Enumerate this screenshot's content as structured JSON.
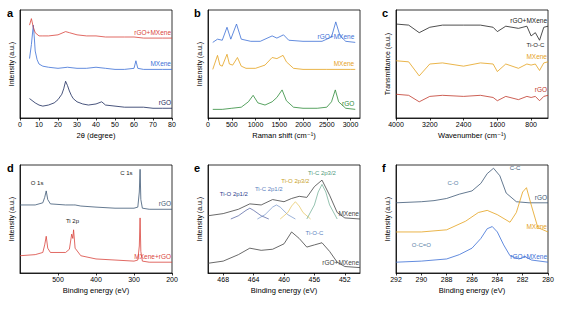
{
  "chart_data": [
    {
      "type": "line",
      "panel": "a",
      "xlabel": "2θ (degree)",
      "ylabel": "Intensity (a.u.)",
      "xlim": [
        0,
        80
      ],
      "xticks": [
        0,
        10,
        20,
        30,
        40,
        50,
        60,
        70,
        80
      ],
      "ylim": [
        0,
        10
      ],
      "tick_labels": "x",
      "grid": false,
      "series": [
        {
          "name": "rGO",
          "color": "#1b2a5c",
          "x": [
            5,
            8,
            10,
            12,
            15,
            18,
            20,
            22,
            23,
            24,
            25,
            26,
            27,
            28,
            30,
            33,
            36,
            40,
            43,
            45,
            50,
            55,
            60,
            65,
            70,
            75,
            80
          ],
          "values": [
            1.8,
            1.4,
            1.2,
            1.1,
            1.2,
            1.4,
            1.7,
            2.2,
            2.7,
            3.4,
            3.0,
            2.5,
            2.1,
            1.8,
            1.5,
            1.3,
            1.2,
            1.3,
            1.5,
            1.2,
            1.1,
            1.0,
            1.0,
            1.0,
            0.9,
            0.9,
            0.9
          ]
        },
        {
          "name": "MXene",
          "color": "#3b6fd6",
          "x": [
            5,
            6,
            7,
            7.5,
            8,
            9,
            10,
            12,
            15,
            20,
            25,
            30,
            35,
            40,
            45,
            50,
            55,
            60,
            61,
            62,
            65,
            70,
            75,
            80
          ],
          "values": [
            5.5,
            6.8,
            8.6,
            7.5,
            6.2,
            5.4,
            5.0,
            4.8,
            4.7,
            4.6,
            4.7,
            4.6,
            4.6,
            4.7,
            4.6,
            4.5,
            4.5,
            4.6,
            5.3,
            4.6,
            4.5,
            4.5,
            4.5,
            4.5
          ]
        },
        {
          "name": "rGO+MXene",
          "color": "#d9443c",
          "x": [
            5,
            6,
            7,
            8,
            10,
            12,
            15,
            20,
            24,
            26,
            30,
            35,
            40,
            45,
            50,
            55,
            60,
            65,
            70,
            75,
            80
          ],
          "values": [
            8.6,
            9.2,
            8.4,
            7.9,
            7.6,
            7.6,
            7.6,
            7.7,
            8.0,
            7.9,
            7.7,
            7.6,
            7.6,
            7.5,
            7.5,
            7.5,
            7.5,
            7.4,
            7.4,
            7.4,
            7.4
          ]
        }
      ],
      "annotations": []
    },
    {
      "type": "line",
      "panel": "b",
      "xlabel": "Raman shift (cm⁻¹)",
      "ylabel": "Intensity (a.u.)",
      "xlim": [
        0,
        3200
      ],
      "xticks": [
        0,
        500,
        1000,
        1500,
        2000,
        2500,
        3000
      ],
      "ylim": [
        0,
        10
      ],
      "tick_labels": "x",
      "grid": false,
      "series": [
        {
          "name": "rGO",
          "color": "#2e8b3a",
          "x": [
            100,
            300,
            500,
            700,
            850,
            950,
            1050,
            1200,
            1350,
            1450,
            1560,
            1650,
            1800,
            2000,
            2300,
            2500,
            2600,
            2680,
            2750,
            2900,
            3100
          ],
          "values": [
            0.8,
            0.8,
            0.9,
            1.0,
            1.5,
            2.1,
            1.4,
            1.2,
            1.5,
            1.9,
            2.6,
            1.6,
            1.0,
            0.9,
            0.9,
            1.0,
            1.5,
            2.6,
            1.5,
            0.9,
            0.8
          ]
        },
        {
          "name": "MXene",
          "color": "#e5a21d",
          "x": [
            100,
            200,
            250,
            300,
            400,
            450,
            520,
            620,
            700,
            800,
            1000,
            1200,
            1350,
            1450,
            1580,
            1650,
            1800,
            2000,
            2500,
            3000,
            3100
          ],
          "values": [
            4.5,
            5.8,
            4.9,
            4.8,
            5.9,
            5.0,
            4.9,
            5.6,
            4.8,
            4.6,
            4.6,
            4.9,
            5.6,
            5.5,
            5.8,
            5.2,
            4.6,
            4.5,
            4.5,
            4.5,
            4.5
          ]
        },
        {
          "name": "rGO+MXene",
          "color": "#3b6fd6",
          "x": [
            100,
            200,
            300,
            400,
            480,
            600,
            700,
            900,
            1100,
            1350,
            1450,
            1590,
            1700,
            2000,
            2400,
            2600,
            2690,
            2780,
            2900,
            3100
          ],
          "values": [
            7.0,
            7.3,
            7.2,
            8.4,
            7.3,
            8.7,
            7.3,
            7.1,
            7.1,
            7.6,
            7.4,
            7.7,
            7.2,
            7.1,
            7.1,
            7.5,
            8.9,
            7.6,
            7.1,
            7.0
          ]
        }
      ],
      "annotations": []
    },
    {
      "type": "line",
      "panel": "c",
      "xlabel": "Wavenumber (cm⁻¹)",
      "ylabel": "Transmittance (a.u.)",
      "xlim": [
        4000,
        400
      ],
      "xticks": [
        4000,
        3200,
        2400,
        1600,
        800
      ],
      "ylim": [
        0,
        10
      ],
      "tick_labels": "x",
      "grid": false,
      "series": [
        {
          "name": "rGO+MXene",
          "color": "#222222",
          "x": [
            4000,
            3700,
            3450,
            3200,
            2900,
            2400,
            2000,
            1700,
            1600,
            1400,
            1100,
            900,
            800,
            700,
            600,
            500,
            400
          ],
          "values": [
            8.7,
            8.6,
            7.9,
            8.4,
            8.6,
            8.6,
            8.6,
            8.4,
            8.0,
            8.5,
            8.3,
            8.5,
            7.6,
            7.9,
            7.2,
            8.4,
            8.5
          ]
        },
        {
          "name": "MXene",
          "color": "#e5a21d",
          "x": [
            4000,
            3700,
            3450,
            3200,
            2900,
            2400,
            2000,
            1700,
            1600,
            1400,
            1100,
            900,
            800,
            700,
            600,
            500,
            400
          ],
          "values": [
            5.3,
            5.2,
            3.9,
            5.0,
            5.1,
            4.8,
            5.1,
            5.0,
            4.3,
            5.0,
            4.6,
            5.0,
            4.9,
            5.0,
            4.4,
            5.1,
            5.2
          ]
        },
        {
          "name": "rGO",
          "color": "#c0392b",
          "x": [
            4000,
            3700,
            3450,
            3200,
            2900,
            2400,
            2000,
            1700,
            1600,
            1400,
            1100,
            900,
            800,
            700,
            600,
            500,
            400
          ],
          "values": [
            2.2,
            2.1,
            1.5,
            2.0,
            2.1,
            2.0,
            2.1,
            1.9,
            1.6,
            2.0,
            1.7,
            2.0,
            1.9,
            2.0,
            1.6,
            2.0,
            2.1
          ]
        }
      ],
      "annotations": [
        {
          "text": "Ti-O-C",
          "x": 700,
          "y": 6.8,
          "color": "#222222"
        }
      ]
    },
    {
      "type": "line",
      "panel": "d",
      "xlabel": "Binding energy (eV)",
      "ylabel": "Intensity (a.u.)",
      "xlim": [
        600,
        200
      ],
      "xticks": [
        500,
        400,
        300,
        200
      ],
      "ylim": [
        0,
        10
      ],
      "tick_labels": "x",
      "grid": false,
      "series": [
        {
          "name": "rGO",
          "color": "#3d5875",
          "x": [
            600,
            560,
            540,
            535,
            531,
            527,
            520,
            480,
            460,
            455,
            440,
            400,
            350,
            300,
            290,
            286,
            284,
            282,
            278,
            260,
            200
          ],
          "values": [
            6.3,
            6.3,
            6.5,
            7.0,
            7.6,
            6.8,
            6.4,
            6.3,
            6.3,
            6.3,
            6.2,
            6.1,
            6.0,
            6.0,
            6.1,
            7.5,
            9.6,
            6.8,
            6.0,
            5.9,
            5.9
          ]
        },
        {
          "name": "MXene+rGO",
          "color": "#d9443c",
          "x": [
            600,
            560,
            540,
            535,
            531,
            527,
            520,
            480,
            470,
            464,
            461,
            459,
            455,
            440,
            400,
            350,
            300,
            290,
            286,
            284,
            282,
            278,
            260,
            200
          ],
          "values": [
            1.6,
            1.7,
            1.9,
            2.6,
            3.4,
            2.3,
            1.9,
            1.9,
            2.2,
            3.6,
            3.2,
            4.0,
            2.3,
            1.6,
            1.3,
            1.2,
            1.1,
            1.2,
            2.5,
            5.1,
            2.0,
            1.1,
            1.0,
            1.0
          ]
        }
      ],
      "annotations": [
        {
          "text": "O 1s",
          "x": 555,
          "y": 8.3,
          "color": "#222222"
        },
        {
          "text": "Ti 2p",
          "x": 462,
          "y": 4.8,
          "color": "#222222"
        },
        {
          "text": "C 1s",
          "x": 320,
          "y": 9.3,
          "color": "#222222"
        }
      ]
    },
    {
      "type": "line",
      "panel": "e",
      "xlabel": "Binding energy (eV)",
      "ylabel": "Intensity (a.u.)",
      "xlim": [
        470,
        450
      ],
      "xticks": [
        468,
        464,
        460,
        456,
        452
      ],
      "ylim": [
        0,
        10
      ],
      "tick_labels": "x",
      "grid": false,
      "series": [
        {
          "name": "MXene",
          "color": "#444444",
          "x": [
            470,
            468,
            466,
            464.5,
            463,
            461.5,
            460,
            459,
            458,
            457,
            456,
            455,
            454,
            453,
            452,
            450
          ],
          "values": [
            5.3,
            5.5,
            5.9,
            6.4,
            6.3,
            6.8,
            6.6,
            6.9,
            7.1,
            7.0,
            8.0,
            8.6,
            7.2,
            5.6,
            5.1,
            5.0
          ]
        },
        {
          "color": "#2c3e8c",
          "x": [
            467,
            466,
            465,
            464.5,
            464,
            463,
            462
          ],
          "values": [
            5.0,
            5.3,
            5.8,
            6.0,
            5.8,
            5.3,
            5.0
          ]
        },
        {
          "color": "#5a7fc0",
          "x": [
            463.5,
            462.5,
            461.5,
            461,
            460.5,
            459.5,
            458.5
          ],
          "values": [
            5.0,
            5.4,
            6.1,
            6.3,
            6.1,
            5.4,
            5.0
          ]
        },
        {
          "color": "#e0b83a",
          "x": [
            460.5,
            459.5,
            459,
            458.5,
            458,
            457.5,
            456.5
          ],
          "values": [
            5.0,
            5.6,
            6.2,
            6.6,
            6.2,
            5.6,
            5.0
          ]
        },
        {
          "color": "#4f9a7c",
          "x": [
            457,
            456,
            455.5,
            455,
            454.5,
            454,
            453
          ],
          "values": [
            5.0,
            6.3,
            7.5,
            8.2,
            7.5,
            6.3,
            5.0
          ]
        },
        {
          "name": "rGO+MXene",
          "color": "#444444",
          "x": [
            470,
            468,
            466,
            464.5,
            463,
            461.5,
            460,
            459,
            458,
            457,
            456,
            455,
            454,
            453,
            452,
            450
          ],
          "values": [
            0.9,
            1.1,
            1.7,
            2.3,
            2.1,
            2.2,
            2.7,
            3.8,
            3.2,
            2.4,
            2.6,
            2.8,
            2.0,
            1.0,
            0.6,
            0.5
          ]
        }
      ],
      "annotations": [
        {
          "text": "Ti-O 2p1/2",
          "x": 466.6,
          "y": 7.3,
          "color": "#2c3e8c"
        },
        {
          "text": "Ti-C 2p1/2",
          "x": 462,
          "y": 7.8,
          "color": "#5a7fc0"
        },
        {
          "text": "Ti-O 2p3/2",
          "x": 458.5,
          "y": 8.5,
          "color": "#c9a227"
        },
        {
          "text": "Ti-C 2p3/2",
          "x": 455,
          "y": 9.3,
          "color": "#4f9a7c"
        },
        {
          "text": "Ti-O-C",
          "x": 456,
          "y": 3.7,
          "color": "#5a7fc0"
        }
      ]
    },
    {
      "type": "line",
      "panel": "f",
      "xlabel": "Binding energy (eV)",
      "ylabel": "Intensity (a.u.)",
      "xlim": [
        292,
        280
      ],
      "xticks": [
        292,
        290,
        288,
        286,
        284,
        282,
        280
      ],
      "ylim": [
        0,
        10
      ],
      "tick_labels": "x",
      "grid": false,
      "series": [
        {
          "name": "rGO",
          "color": "#3d5875",
          "x": [
            292,
            290,
            289,
            288,
            287,
            286,
            285.3,
            284.8,
            284.3,
            283.8,
            283.3,
            282.5,
            281.5,
            280
          ],
          "values": [
            6.5,
            6.6,
            6.7,
            6.9,
            7.3,
            7.6,
            8.3,
            9.2,
            9.7,
            9.0,
            7.4,
            6.6,
            6.5,
            6.5
          ]
        },
        {
          "name": "MXene",
          "color": "#e5a21d",
          "x": [
            292,
            290,
            288,
            286.5,
            285.5,
            284.8,
            284,
            283,
            282.5,
            282,
            281.7,
            281.3,
            280.8,
            280
          ],
          "values": [
            3.8,
            3.8,
            4.0,
            4.8,
            5.6,
            5.8,
            5.4,
            4.7,
            5.6,
            7.5,
            7.9,
            6.2,
            4.2,
            3.8
          ]
        },
        {
          "name": "rGO+MXene",
          "color": "#3b6fd6",
          "x": [
            292,
            290,
            288,
            287,
            286,
            285.3,
            284.8,
            284.4,
            284,
            283.5,
            283,
            282.3,
            281.8,
            281.3,
            280
          ],
          "values": [
            1.0,
            1.1,
            1.3,
            1.7,
            2.3,
            3.2,
            4.1,
            4.3,
            3.8,
            2.6,
            1.6,
            1.3,
            1.5,
            1.2,
            1.0
          ]
        }
      ],
      "annotations": [
        {
          "text": "C-O",
          "x": 287.5,
          "y": 8.3,
          "color": "#5b7fa8"
        },
        {
          "text": "C-C",
          "x": 282.6,
          "y": 9.7,
          "color": "#3d5875"
        },
        {
          "text": "O-C=O",
          "x": 290,
          "y": 2.6,
          "color": "#5b7fa8"
        }
      ]
    }
  ]
}
